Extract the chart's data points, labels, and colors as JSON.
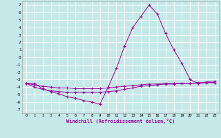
{
  "xlabel": "Windchill (Refroidissement éolien,°C)",
  "bg_color": "#c5e8e8",
  "grid_color": "#ffffff",
  "line_color": "#990099",
  "xlim": [
    -0.5,
    23.5
  ],
  "ylim": [
    -7.5,
    7.5
  ],
  "yticks": [
    -7,
    -6,
    -5,
    -4,
    -3,
    -2,
    -1,
    0,
    1,
    2,
    3,
    4,
    5,
    6,
    7
  ],
  "xticks": [
    0,
    1,
    2,
    3,
    4,
    5,
    6,
    7,
    8,
    9,
    10,
    11,
    12,
    13,
    14,
    15,
    16,
    17,
    18,
    19,
    20,
    21,
    22,
    23
  ],
  "series1": [
    [
      0,
      -3.5
    ],
    [
      1,
      -3.5
    ],
    [
      2,
      -4.2
    ],
    [
      3,
      -4.6
    ],
    [
      4,
      -4.9
    ],
    [
      5,
      -5.3
    ],
    [
      6,
      -5.5
    ],
    [
      7,
      -5.8
    ],
    [
      8,
      -6.0
    ],
    [
      9,
      -6.3
    ],
    [
      10,
      -4.0
    ],
    [
      11,
      -1.5
    ],
    [
      12,
      1.5
    ],
    [
      13,
      4.0
    ],
    [
      14,
      5.5
    ],
    [
      15,
      7.0
    ],
    [
      16,
      5.8
    ],
    [
      17,
      3.2
    ],
    [
      18,
      1.0
    ],
    [
      19,
      -0.8
    ],
    [
      20,
      -3.0
    ],
    [
      21,
      -3.5
    ],
    [
      22,
      -3.3
    ],
    [
      23,
      -3.2
    ]
  ],
  "series2": [
    [
      0,
      -3.5
    ],
    [
      1,
      -3.7
    ],
    [
      2,
      -3.9
    ],
    [
      3,
      -4.0
    ],
    [
      4,
      -4.1
    ],
    [
      5,
      -4.1
    ],
    [
      6,
      -4.2
    ],
    [
      7,
      -4.2
    ],
    [
      8,
      -4.2
    ],
    [
      9,
      -4.2
    ],
    [
      10,
      -4.1
    ],
    [
      11,
      -4.0
    ],
    [
      12,
      -3.9
    ],
    [
      13,
      -3.8
    ],
    [
      14,
      -3.7
    ],
    [
      15,
      -3.6
    ],
    [
      16,
      -3.6
    ],
    [
      17,
      -3.5
    ],
    [
      18,
      -3.5
    ],
    [
      19,
      -3.5
    ],
    [
      20,
      -3.5
    ],
    [
      21,
      -3.4
    ],
    [
      22,
      -3.4
    ],
    [
      23,
      -3.4
    ]
  ],
  "series3": [
    [
      0,
      -3.5
    ],
    [
      1,
      -4.0
    ],
    [
      2,
      -4.3
    ],
    [
      3,
      -4.5
    ],
    [
      4,
      -4.6
    ],
    [
      5,
      -4.7
    ],
    [
      6,
      -4.7
    ],
    [
      7,
      -4.7
    ],
    [
      8,
      -4.7
    ],
    [
      9,
      -4.7
    ],
    [
      10,
      -4.6
    ],
    [
      11,
      -4.5
    ],
    [
      12,
      -4.3
    ],
    [
      13,
      -4.1
    ],
    [
      14,
      -3.9
    ],
    [
      15,
      -3.8
    ],
    [
      16,
      -3.7
    ],
    [
      17,
      -3.6
    ],
    [
      18,
      -3.6
    ],
    [
      19,
      -3.5
    ],
    [
      20,
      -3.5
    ],
    [
      21,
      -3.5
    ],
    [
      22,
      -3.4
    ],
    [
      23,
      -3.4
    ]
  ]
}
